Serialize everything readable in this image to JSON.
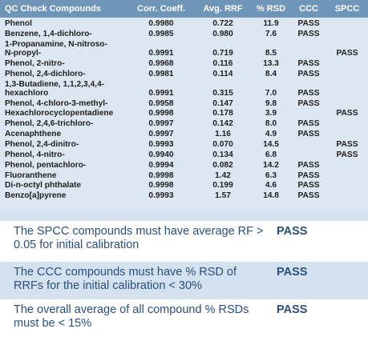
{
  "table": {
    "headers": {
      "compound": "QC Check Compounds",
      "corr": "Corr. Coeff.",
      "rrf": "Avg. RRF",
      "rsd": "% RSD",
      "ccc": "CCC",
      "spcc": "SPCC"
    },
    "rows": [
      {
        "name": [
          "Phenol"
        ],
        "corr": "0.9980",
        "rrf": "0.722",
        "rsd": "11.9",
        "ccc": "PASS",
        "spcc": ""
      },
      {
        "name": [
          "Benzene, 1,4-dichloro-"
        ],
        "corr": "0.9985",
        "rrf": "0.980",
        "rsd": "7.6",
        "ccc": "PASS",
        "spcc": ""
      },
      {
        "name": [
          "1-Propanamine, N-nitroso-",
          "N-propyl-"
        ],
        "corr": "0.9991",
        "rrf": "0.719",
        "rsd": "8.5",
        "ccc": "",
        "spcc": "PASS"
      },
      {
        "name": [
          "Phenol, 2-nitro-"
        ],
        "corr": "0.9968",
        "rrf": "0.116",
        "rsd": "13.3",
        "ccc": "PASS",
        "spcc": ""
      },
      {
        "name": [
          "Phenol, 2,4-dichloro-"
        ],
        "corr": "0.9981",
        "rrf": "0.114",
        "rsd": "8.4",
        "ccc": "PASS",
        "spcc": ""
      },
      {
        "name": [
          "1,3-Butadiene, 1,1,2,3,4,4-",
          "hexachloro"
        ],
        "corr": "0.9991",
        "rrf": "0.315",
        "rsd": "7.0",
        "ccc": "PASS",
        "spcc": ""
      },
      {
        "name": [
          "Phenol, 4-chloro-3-methyl-"
        ],
        "corr": "0.9958",
        "rrf": "0.147",
        "rsd": "9.8",
        "ccc": "PASS",
        "spcc": ""
      },
      {
        "name": [
          "Hexachlorocyclopentadiene"
        ],
        "corr": "0.9998",
        "rrf": "0.178",
        "rsd": "3.9",
        "ccc": "",
        "spcc": "PASS"
      },
      {
        "name": [
          "Phenol, 2,4,6-trichloro-"
        ],
        "corr": "0.9997",
        "rrf": "0.142",
        "rsd": "8.0",
        "ccc": "PASS",
        "spcc": ""
      },
      {
        "name": [
          "Acenaphthene"
        ],
        "corr": "0.9997",
        "rrf": "1.16",
        "rsd": "4.9",
        "ccc": "PASS",
        "spcc": ""
      },
      {
        "name": [
          "Phenol, 2,4-dinitro-"
        ],
        "corr": "0.9993",
        "rrf": "0.070",
        "rsd": "14.5",
        "ccc": "",
        "spcc": "PASS"
      },
      {
        "name": [
          "Phenol, 4-nitro-"
        ],
        "corr": "0.9940",
        "rrf": "0.134",
        "rsd": "6.8",
        "ccc": "",
        "spcc": "PASS"
      },
      {
        "name": [
          "Phenol, pentachloro-"
        ],
        "corr": "0.9994",
        "rrf": "0.082",
        "rsd": "14.2",
        "ccc": "PASS",
        "spcc": ""
      },
      {
        "name": [
          "Fluoranthene"
        ],
        "corr": "0.9998",
        "rrf": "1.42",
        "rsd": "6.3",
        "ccc": "PASS",
        "spcc": ""
      },
      {
        "name": [
          "Di-n-octyl phthalate"
        ],
        "corr": "0.9998",
        "rrf": "0.199",
        "rsd": "4.6",
        "ccc": "PASS",
        "spcc": ""
      },
      {
        "name": [
          "Benzo[a]pyrene"
        ],
        "corr": "0.9993",
        "rrf": "1.57",
        "rsd": "14.8",
        "ccc": "PASS",
        "spcc": ""
      }
    ]
  },
  "criteria": [
    {
      "text": "The SPCC compounds must have average RF > 0.05 for initial calibration",
      "result": "PASS"
    },
    {
      "text": "The CCC compounds must have % RSD of RRFs for the initial calibration < 30%",
      "result": "PASS"
    },
    {
      "text": "The overall average of all compound % RSDs must be < 15%",
      "result": "PASS"
    }
  ]
}
